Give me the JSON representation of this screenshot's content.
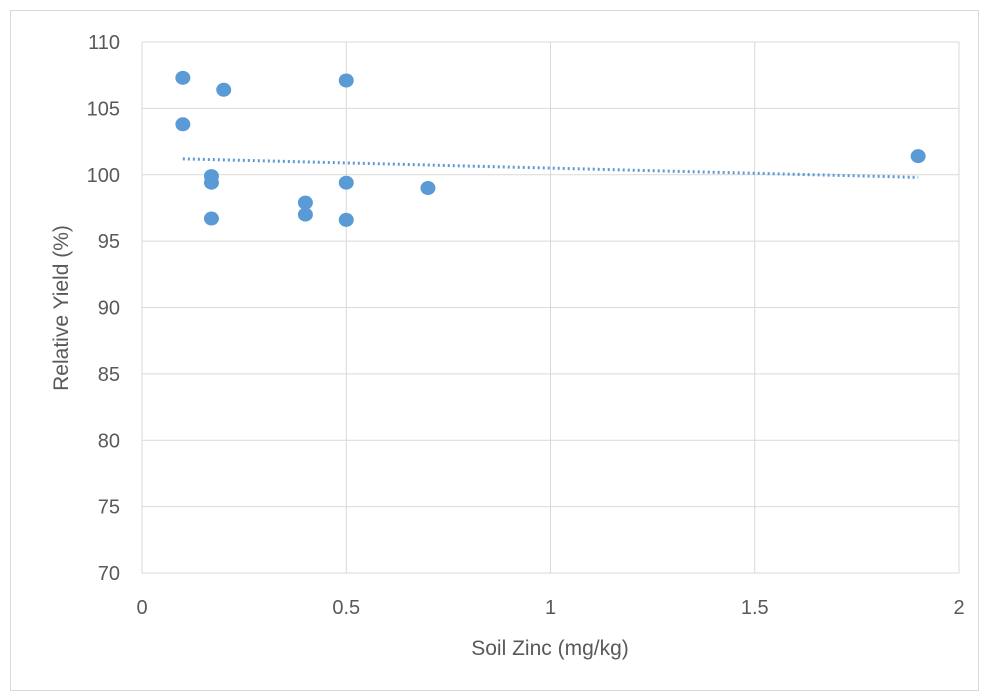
{
  "chart_data": {
    "type": "scatter",
    "title": "",
    "xlabel": "Soil Zinc (mg/kg)",
    "ylabel": "Relative Yield (%)",
    "xlim": [
      0,
      2
    ],
    "ylim": [
      70,
      110
    ],
    "xticks": [
      0,
      0.5,
      1,
      1.5,
      2
    ],
    "xtick_labels": [
      "0",
      "0.5",
      "1",
      "1.5",
      "2"
    ],
    "yticks": [
      70,
      75,
      80,
      85,
      90,
      95,
      100,
      105,
      110
    ],
    "ytick_labels": [
      "70",
      "75",
      "80",
      "85",
      "90",
      "95",
      "100",
      "105",
      "110"
    ],
    "grid": true,
    "legend": "none",
    "marker_color": "#5b9bd5",
    "trendline_color": "#5b9bd5",
    "series": [
      {
        "points": [
          {
            "x": 0.1,
            "y": 107.3
          },
          {
            "x": 0.1,
            "y": 103.8
          },
          {
            "x": 0.2,
            "y": 106.4
          },
          {
            "x": 0.17,
            "y": 99.9
          },
          {
            "x": 0.17,
            "y": 99.4
          },
          {
            "x": 0.17,
            "y": 96.7
          },
          {
            "x": 0.4,
            "y": 97.9
          },
          {
            "x": 0.4,
            "y": 97.0
          },
          {
            "x": 0.5,
            "y": 107.1
          },
          {
            "x": 0.5,
            "y": 99.4
          },
          {
            "x": 0.5,
            "y": 96.6
          },
          {
            "x": 0.7,
            "y": 99.0
          },
          {
            "x": 1.9,
            "y": 101.4
          }
        ]
      }
    ],
    "trendline": {
      "type": "linear",
      "style": "dotted",
      "x_range": [
        0.1,
        1.9
      ],
      "y_values": [
        101.2,
        99.8
      ]
    }
  }
}
